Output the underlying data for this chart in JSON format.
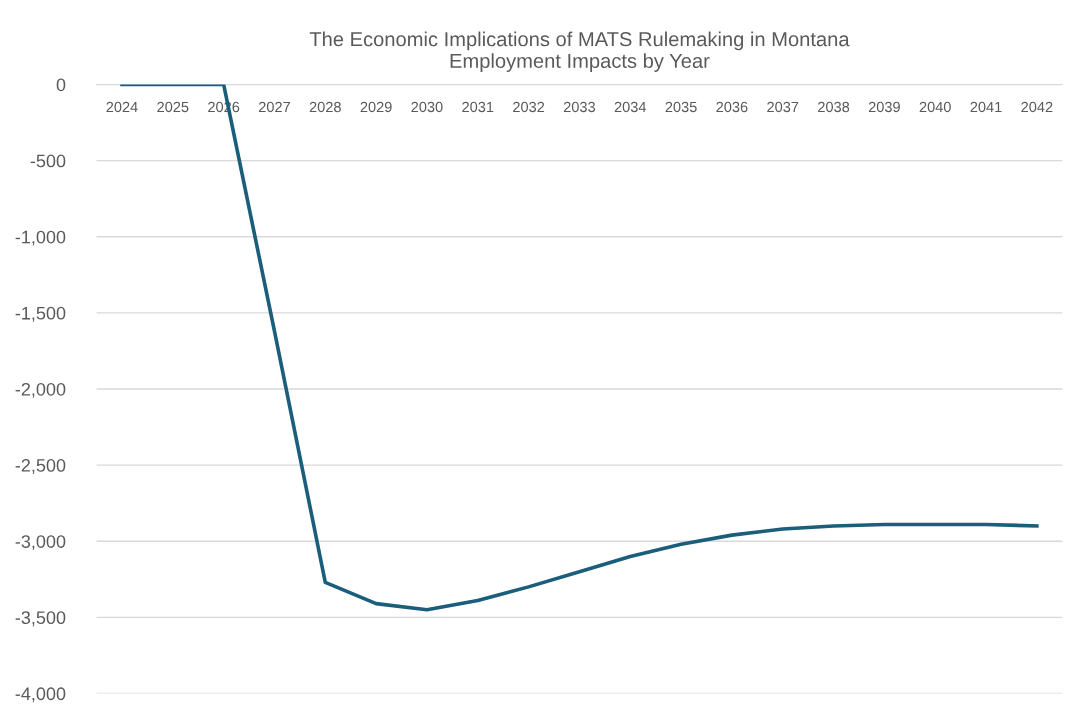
{
  "chart_data": {
    "type": "line",
    "title": "The Economic Implications of MATS Rulemaking in Montana\nEmployment Impacts by Year",
    "categories": [
      "2024",
      "2025",
      "2026",
      "2027",
      "2028",
      "2029",
      "2030",
      "2031",
      "2032",
      "2033",
      "2034",
      "2035",
      "2036",
      "2037",
      "2038",
      "2039",
      "2040",
      "2041",
      "2042"
    ],
    "series": [
      {
        "color": "#1b5e7b",
        "values": [
          0,
          0,
          0,
          -1620,
          -3270,
          -3410,
          -3450,
          -3390,
          -3300,
          -3200,
          -3100,
          -3020,
          -2960,
          -2920,
          -2900,
          -2890,
          -2890,
          -2890,
          -2900
        ]
      }
    ],
    "ylim": [
      -4000,
      0
    ],
    "yticks": [
      {
        "value": 0,
        "label": "0"
      },
      {
        "value": -500,
        "label": "-500"
      },
      {
        "value": -1000,
        "label": "-1,000"
      },
      {
        "value": -1500,
        "label": "-1,500"
      },
      {
        "value": -2000,
        "label": "-2,000"
      },
      {
        "value": -2500,
        "label": "-2,500"
      },
      {
        "value": -3000,
        "label": "-3,000"
      },
      {
        "value": -3500,
        "label": "-3,500"
      },
      {
        "value": -4000,
        "label": "-4,000"
      }
    ],
    "grid": "y",
    "marker": "none",
    "line_style": "solid",
    "legend": false
  }
}
